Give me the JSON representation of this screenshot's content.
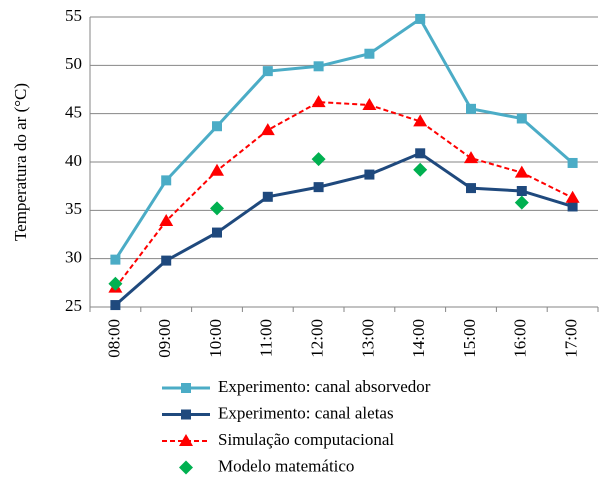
{
  "chart_data": {
    "type": "line",
    "y_label": "Temperatura do ar (°C)",
    "categories": [
      "08:00",
      "09:00",
      "10:00",
      "11:00",
      "12:00",
      "13:00",
      "14:00",
      "15:00",
      "16:00",
      "17:00"
    ],
    "series": [
      {
        "name": "Experimento: canal absorvedor",
        "color": "#4bacc6",
        "marker": "square",
        "line": "solid",
        "values": [
          29.9,
          38.1,
          43.7,
          49.4,
          49.9,
          51.2,
          54.8,
          45.5,
          44.5,
          39.9
        ]
      },
      {
        "name": "Experimento: canal aletas",
        "color": "#1f497d",
        "marker": "square",
        "line": "solid",
        "values": [
          25.2,
          29.8,
          32.7,
          36.4,
          37.4,
          38.7,
          40.9,
          37.3,
          37.0,
          35.4
        ]
      },
      {
        "name": "Simulação computacional",
        "color": "#ff0000",
        "marker": "triangle",
        "line": "dashed",
        "values": [
          27.0,
          33.9,
          39.1,
          43.3,
          46.2,
          45.9,
          44.2,
          40.4,
          38.9,
          36.3
        ]
      },
      {
        "name": "Modelo matemático",
        "color": "#00b050",
        "marker": "diamond",
        "line": "none",
        "values": [
          27.4,
          null,
          35.2,
          null,
          40.3,
          null,
          39.2,
          null,
          35.8,
          null
        ]
      }
    ],
    "ylim": [
      25,
      55
    ],
    "yticks": [
      25,
      30,
      35,
      40,
      45,
      50,
      55
    ],
    "grid": true,
    "legend": "bottom"
  }
}
